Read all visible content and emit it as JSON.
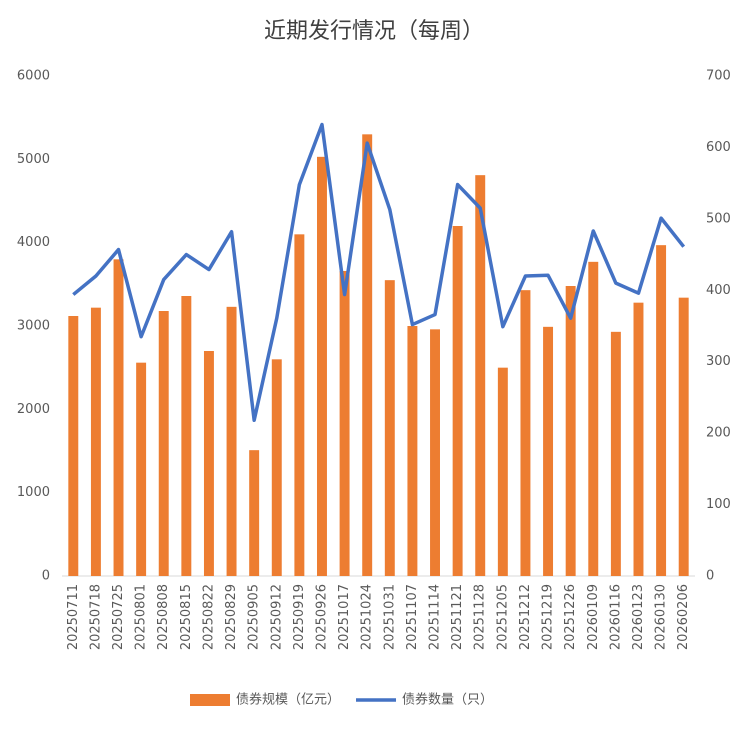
{
  "chart_data": {
    "type": "bar-line",
    "title": "近期发行情况（每周）",
    "categories": [
      "20250711",
      "20250718",
      "20250725",
      "20250801",
      "20250808",
      "20250815",
      "20250822",
      "20250829",
      "20250905",
      "20250912",
      "20250919",
      "20250926",
      "20251017",
      "20251024",
      "20251031",
      "20251107",
      "20251114",
      "20251121",
      "20251128",
      "20251205",
      "20251212",
      "20251219",
      "20251226",
      "20260109",
      "20260116",
      "20260123",
      "20260130",
      "20260206"
    ],
    "series": [
      {
        "name": "债券规模（亿元）",
        "type": "bar",
        "color": "#ed7d31",
        "values": [
          3120,
          3220,
          3800,
          2560,
          3180,
          3360,
          2700,
          3230,
          1510,
          2600,
          4100,
          5030,
          3660,
          5300,
          3550,
          3000,
          2960,
          4200,
          4810,
          2500,
          3430,
          2990,
          3480,
          3770,
          2930,
          3280,
          3970,
          3340
        ]
      },
      {
        "name": "债券数量（只）",
        "type": "line",
        "axis": "y2",
        "color": "#4472c4",
        "values": [
          394,
          420,
          457,
          335,
          415,
          450,
          429,
          482,
          218,
          361,
          548,
          632,
          394,
          606,
          513,
          352,
          366,
          548,
          515,
          349,
          420,
          421,
          361,
          483,
          410,
          396,
          501,
          461
        ]
      }
    ],
    "ylim": [
      0,
      6000
    ],
    "yticks": [
      0,
      1000,
      2000,
      3000,
      4000,
      5000,
      6000
    ],
    "y2lim": [
      0,
      700
    ],
    "y2ticks": [
      0,
      100,
      200,
      300,
      400,
      500,
      600,
      700
    ],
    "legend": "bottom"
  }
}
